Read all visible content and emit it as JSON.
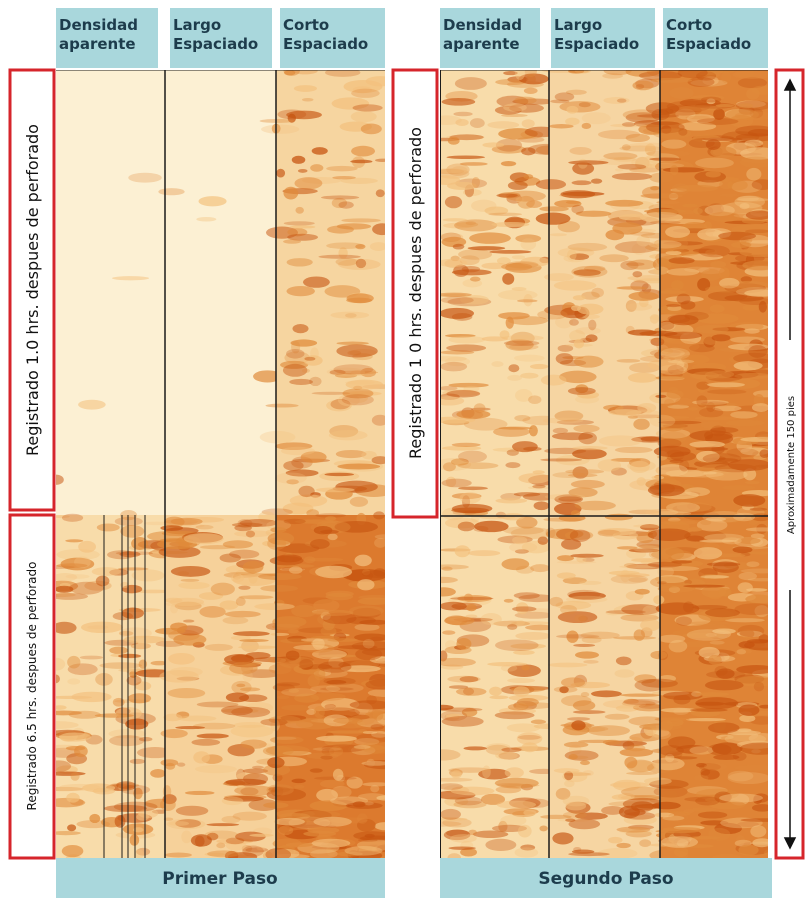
{
  "panels": [
    {
      "tracks": [
        "Densidad aparente",
        "Largo Espaciado",
        "Corto Espaciado"
      ],
      "labels": [
        "Registrado 1.0 hrs. despues de perforado",
        "Registrado 6.5 hrs. despues de perforado"
      ],
      "footer": "Primer Paso"
    },
    {
      "tracks": [
        "Densidad aparente",
        "Largo Espaciado",
        "Corto Espaciado"
      ],
      "labels": [
        "Registrado 1 0 hrs. despues de perforado"
      ],
      "footer": "Segundo Paso"
    }
  ],
  "scale_note": "Aproximadamente 150 pies"
}
